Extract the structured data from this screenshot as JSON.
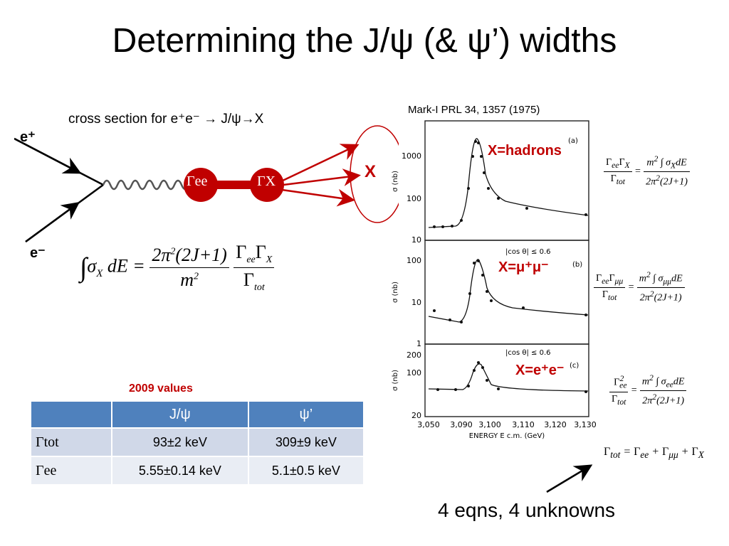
{
  "slide": {
    "title": "Determining the J/ψ (& ψ’) widths",
    "cross_section_caption": "cross section for e⁺e⁻ → J/ψ→X",
    "e_plus": "e⁺",
    "e_minus": "e⁻",
    "gamma_ee": "Γee",
    "gamma_x": "ΓX",
    "x_label": "X",
    "conclusion": "4 eqns, 4 unknowns"
  },
  "plot": {
    "reference": "Mark-I PRL 34, 1357 (1975)",
    "panel_a": {
      "label": "X=hadrons",
      "tag": "(a)",
      "yticks": [
        "1000",
        "100",
        "10"
      ]
    },
    "panel_b": {
      "label": "X=μ⁺μ⁻",
      "tag": "(b)",
      "cut": "|cos θ| ≤ 0.6",
      "yticks": [
        "100",
        "10",
        "1"
      ]
    },
    "panel_c": {
      "label": "X=e⁺e⁻",
      "tag": "(c)",
      "cut": "|cos θ| ≤ 0.6",
      "yticks": [
        "200",
        "100",
        "20"
      ]
    },
    "ylabel": "σ (nb)",
    "xlabel": "ENERGY E c.m. (GeV)",
    "xticks": [
      "3,050",
      "3,090",
      "3,100",
      "3,110",
      "3,120",
      "3,130"
    ]
  },
  "table": {
    "caption": "2009 values",
    "headers": [
      "",
      "J/ψ",
      "ψ’"
    ],
    "rows": [
      {
        "label": "Γtot",
        "jpsi": "93±2 keV",
        "psiprime": "309±9 keV"
      },
      {
        "label": "Γee",
        "jpsi": "5.55±0.14 keV",
        "psiprime": "5.1±0.5 keV"
      }
    ]
  },
  "colors": {
    "accent_red": "#c00000",
    "table_header": "#4f81bd",
    "row1": "#d0d8e8",
    "row2": "#e9edf4"
  }
}
